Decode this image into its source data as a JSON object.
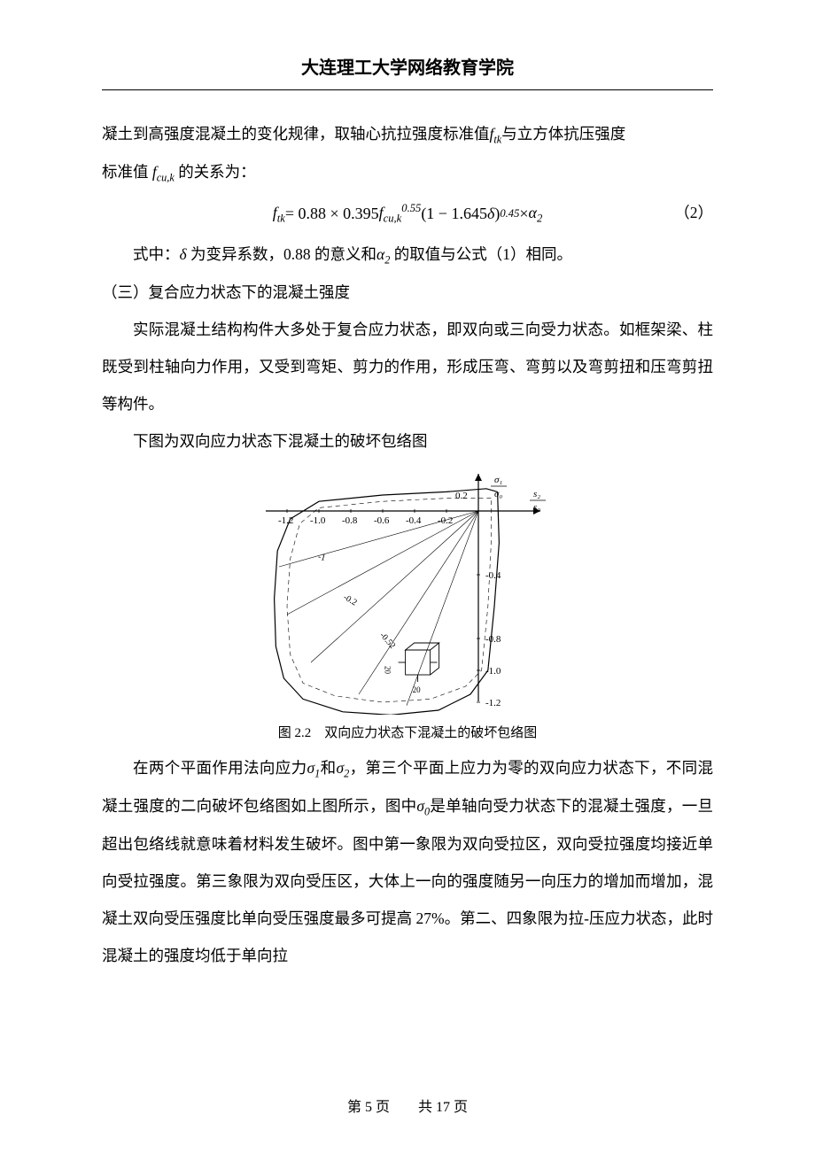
{
  "header": {
    "title": "大连理工大学网络教育学院"
  },
  "para1_a": "凝土到高强度混凝土的变化规律，取轴心抗拉强度标准值",
  "para1_b": "与立方体抗压强度",
  "para1_c": "标准值",
  "para1_d": "的关系为：",
  "symbols": {
    "ftk": "f",
    "ftk_sub": "tk",
    "fcuk": "f",
    "fcuk_sub": "cu,k",
    "delta": "δ",
    "alpha2": "α",
    "alpha2_sub": "2",
    "sigma1": "σ",
    "sigma1_sub": "1",
    "sigma2": "σ",
    "sigma2_sub": "2",
    "sigma0": "σ",
    "sigma0_sub": "0"
  },
  "equation": {
    "lhs_var": "f",
    "lhs_sub": "tk",
    "eq": " = 0.88 × 0.395",
    "term_var": "f",
    "term_sub": "cu,k",
    "term_sup": "0.55",
    "paren": "(1 − 1.645",
    "paren_var": "δ",
    "paren_close": ")",
    "paren_sup": "0.45",
    "times": " × ",
    "tail_var": "α",
    "tail_sub": "2",
    "number": "（2）"
  },
  "para2_a": "式中：",
  "para2_b": " 为变异系数，0.88 的意义和",
  "para2_c": "的取值与公式（1）相同。",
  "section3": "（三）复合应力状态下的混凝土强度",
  "para3": "实际混凝土结构构件大多处于复合应力状态，即双向或三向受力状态。如框架梁、柱既受到柱轴向力作用，又受到弯矩、剪力的作用，形成压弯、弯剪以及弯剪扭和压弯剪扭等构件。",
  "para4": "下图为双向应力状态下混凝土的破坏包络图",
  "figure": {
    "caption": "图 2.2　双向应力状态下混凝土的破坏包络图",
    "y_axis_label_top": "σ₁",
    "y_axis_label_bot": "σ₀",
    "x_axis_label_top": "s₂",
    "x_axis_label_bot": "s₀",
    "y_top_tick": "0.2",
    "x_ticks": [
      "-1.2",
      "-1.0",
      "-0.8",
      "-0.6",
      "-0.4",
      "-0.2"
    ],
    "y_ticks_right": [
      "-0.4",
      "-0.8",
      "-1.0",
      "-1.2"
    ],
    "diag_labels": [
      "-1",
      "-0.2",
      "-0.52"
    ],
    "stroke": "#000000",
    "bg": "#ffffff",
    "line_w_main": 1.2,
    "line_w_light": 0.6
  },
  "para5_a": "在两个平面作用法向应力",
  "para5_b": "和",
  "para5_c": "，第三个平面上应力为零的双向应力状态下，不同混凝土强度的二向破坏包络图如上图所示，图中",
  "para5_d": "是单轴向受力状态下的混凝土强度，一旦超出包络线就意味着材料发生破坏。图中第一象限为双向受拉区，双向受拉强度均接近单向受拉强度。第三象限为双向受压区，大体上一向的强度随另一向压力的增加而增加，混凝土双向受压强度比单向受压强度最多可提高 27%。第二、四象限为拉-压应力状态，此时混凝土的强度均低于单向拉",
  "footer": {
    "prefix": "第 ",
    "cur": "5",
    "mid": " 页　　共 ",
    "total": "17",
    "suffix": " 页"
  }
}
